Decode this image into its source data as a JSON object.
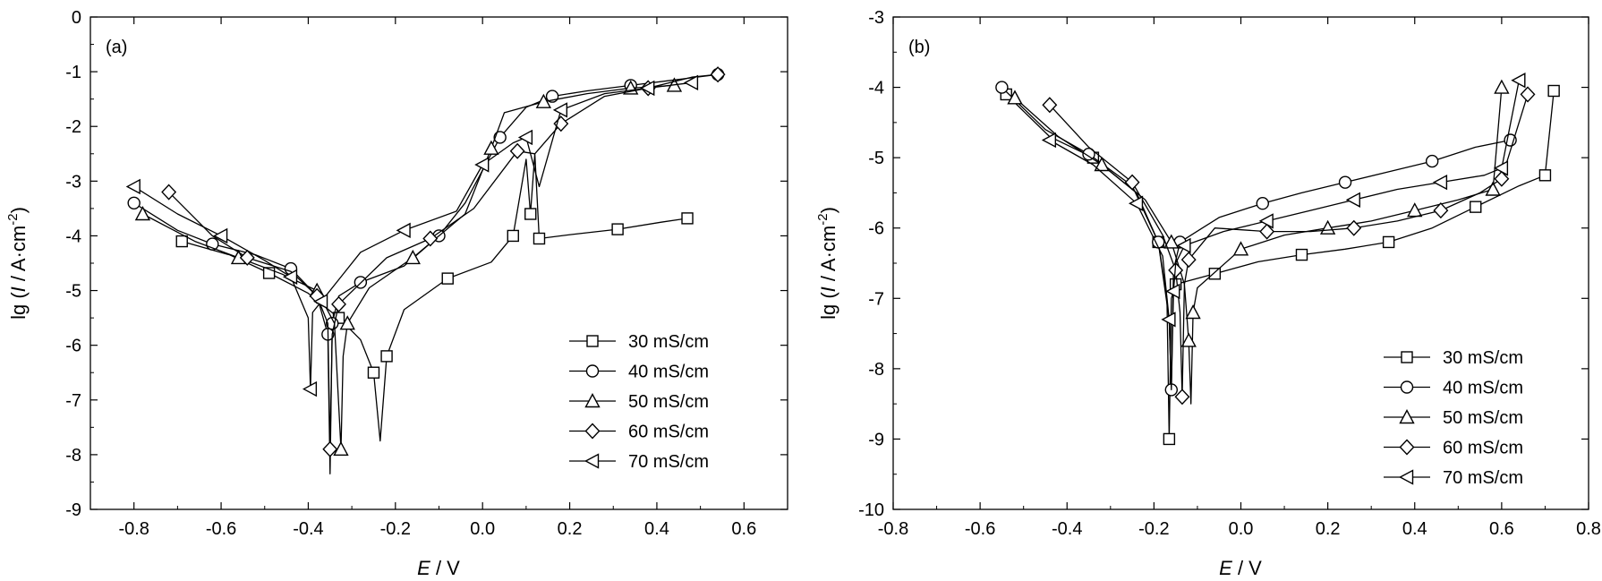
{
  "chart_data": [
    {
      "type": "line",
      "panel_label": "(a)",
      "xlabel_symbol": "E",
      "xlabel_unit": " / V",
      "ylabel_prefix": "lg (",
      "ylabel_symbol": "I",
      "ylabel_unit": " / A·cm",
      "ylabel_sup": "-2",
      "ylabel_suffix": ")",
      "xlim": [
        -0.9,
        0.7
      ],
      "ylim": [
        -9,
        0
      ],
      "xticks": [
        -0.8,
        -0.6,
        -0.4,
        -0.2,
        0.0,
        0.2,
        0.4,
        0.6
      ],
      "xtick_labels": [
        "-0.8",
        "-0.6",
        "-0.4",
        "-0.2",
        "0.0",
        "0.2",
        "0.4",
        "0.6"
      ],
      "yticks": [
        0,
        -1,
        -2,
        -3,
        -4,
        -5,
        -6,
        -7,
        -8,
        -9
      ],
      "ytick_labels": [
        "0",
        "-1",
        "-2",
        "-3",
        "-4",
        "-5",
        "-6",
        "-7",
        "-8",
        "-9"
      ],
      "legend_position": "bottom-right",
      "series": [
        {
          "name": "30 mS/cm",
          "marker": "square",
          "x": [
            -0.69,
            -0.58,
            -0.49,
            -0.4,
            -0.33,
            -0.28,
            -0.25,
            -0.235,
            -0.22,
            -0.18,
            -0.08,
            0.02,
            0.07,
            0.1,
            0.11,
            0.12,
            0.13,
            0.21,
            0.31,
            0.41,
            0.47
          ],
          "y": [
            -4.1,
            -4.35,
            -4.68,
            -5.05,
            -5.5,
            -5.9,
            -6.5,
            -7.75,
            -6.2,
            -5.35,
            -4.78,
            -4.48,
            -4.0,
            -2.6,
            -3.6,
            -2.5,
            -4.05,
            -3.97,
            -3.88,
            -3.75,
            -3.68
          ]
        },
        {
          "name": "40 mS/cm",
          "marker": "circle",
          "x": [
            -0.8,
            -0.7,
            -0.62,
            -0.52,
            -0.44,
            -0.38,
            -0.355,
            -0.35,
            -0.345,
            -0.33,
            -0.28,
            -0.18,
            -0.1,
            -0.04,
            0.04,
            0.1,
            0.16,
            0.24,
            0.34,
            0.44,
            0.54
          ],
          "y": [
            -3.4,
            -3.9,
            -4.15,
            -4.35,
            -4.6,
            -5.1,
            -5.8,
            -8.35,
            -5.6,
            -5.1,
            -4.85,
            -4.55,
            -4.0,
            -3.4,
            -2.2,
            -1.65,
            -1.45,
            -1.35,
            -1.25,
            -1.15,
            -1.05
          ]
        },
        {
          "name": "50 mS/cm",
          "marker": "triangle-up",
          "x": [
            -0.78,
            -0.66,
            -0.56,
            -0.46,
            -0.38,
            -0.34,
            -0.325,
            -0.32,
            -0.31,
            -0.26,
            -0.16,
            -0.04,
            0.02,
            0.05,
            0.14,
            0.24,
            0.34,
            0.44
          ],
          "y": [
            -3.6,
            -4.1,
            -4.4,
            -4.7,
            -5.0,
            -5.6,
            -7.9,
            -6.2,
            -5.6,
            -4.95,
            -4.4,
            -3.6,
            -2.4,
            -1.75,
            -1.55,
            -1.4,
            -1.3,
            -1.25
          ]
        },
        {
          "name": "60 mS/cm",
          "marker": "diamond",
          "x": [
            -0.72,
            -0.62,
            -0.54,
            -0.44,
            -0.38,
            -0.355,
            -0.35,
            -0.345,
            -0.33,
            -0.22,
            -0.12,
            -0.02,
            0.08,
            0.12,
            0.18,
            0.28,
            0.38,
            0.48,
            0.54
          ],
          "y": [
            -3.2,
            -4.0,
            -4.4,
            -4.65,
            -5.1,
            -5.6,
            -7.9,
            -5.8,
            -5.25,
            -4.4,
            -4.05,
            -3.5,
            -2.45,
            -2.5,
            -1.95,
            -1.45,
            -1.3,
            -1.1,
            -1.05
          ]
        },
        {
          "name": "70 mS/cm",
          "marker": "triangle-left",
          "x": [
            -0.8,
            -0.7,
            -0.6,
            -0.5,
            -0.44,
            -0.4,
            -0.395,
            -0.39,
            -0.37,
            -0.28,
            -0.18,
            -0.06,
            0.0,
            0.07,
            0.1,
            0.13,
            0.18,
            0.28,
            0.38,
            0.48
          ],
          "y": [
            -3.1,
            -3.6,
            -4.0,
            -4.45,
            -4.75,
            -5.5,
            -6.8,
            -5.4,
            -5.2,
            -4.3,
            -3.9,
            -3.55,
            -2.7,
            -2.3,
            -2.2,
            -3.1,
            -1.7,
            -1.4,
            -1.3,
            -1.2
          ]
        }
      ]
    },
    {
      "type": "line",
      "panel_label": "(b)",
      "xlabel_symbol": "E",
      "xlabel_unit": " / V",
      "ylabel_prefix": "lg (",
      "ylabel_symbol": "I",
      "ylabel_unit": " / A·cm",
      "ylabel_sup": "-2",
      "ylabel_suffix": ")",
      "xlim": [
        -0.8,
        0.8
      ],
      "ylim": [
        -10,
        -3
      ],
      "xticks": [
        -0.8,
        -0.6,
        -0.4,
        -0.2,
        0.0,
        0.2,
        0.4,
        0.6,
        0.8
      ],
      "xtick_labels": [
        "-0.8",
        "-0.6",
        "-0.4",
        "-0.2",
        "0.0",
        "0.2",
        "0.4",
        "0.6",
        "0.8"
      ],
      "yticks": [
        -3,
        -4,
        -5,
        -6,
        -7,
        -8,
        -9,
        -10
      ],
      "ytick_labels": [
        "-3",
        "-4",
        "-5",
        "-6",
        "-7",
        "-8",
        "-9",
        "-10"
      ],
      "legend_position": "bottom-right",
      "series": [
        {
          "name": "30 mS/cm",
          "marker": "square",
          "x": [
            -0.54,
            -0.44,
            -0.34,
            -0.24,
            -0.19,
            -0.17,
            -0.165,
            -0.16,
            -0.15,
            -0.12,
            -0.06,
            0.04,
            0.14,
            0.24,
            0.34,
            0.44,
            0.54,
            0.64,
            0.7,
            0.72
          ],
          "y": [
            -4.1,
            -4.7,
            -5.0,
            -5.5,
            -6.2,
            -7.0,
            -9.0,
            -7.0,
            -6.8,
            -6.75,
            -6.65,
            -6.48,
            -6.38,
            -6.3,
            -6.2,
            -6.0,
            -5.7,
            -5.4,
            -5.25,
            -4.05
          ]
        },
        {
          "name": "40 mS/cm",
          "marker": "circle",
          "x": [
            -0.55,
            -0.45,
            -0.35,
            -0.25,
            -0.19,
            -0.165,
            -0.16,
            -0.155,
            -0.14,
            -0.05,
            0.05,
            0.14,
            0.24,
            0.34,
            0.44,
            0.54,
            0.62
          ],
          "y": [
            -4.0,
            -4.6,
            -4.95,
            -5.4,
            -6.2,
            -7.3,
            -8.3,
            -6.6,
            -6.2,
            -5.85,
            -5.65,
            -5.5,
            -5.35,
            -5.2,
            -5.05,
            -4.85,
            -4.75
          ]
        },
        {
          "name": "50 mS/cm",
          "marker": "triangle-up",
          "x": [
            -0.52,
            -0.42,
            -0.32,
            -0.22,
            -0.16,
            -0.13,
            -0.12,
            -0.115,
            -0.11,
            -0.1,
            0.0,
            0.1,
            0.2,
            0.3,
            0.4,
            0.5,
            0.58,
            0.6
          ],
          "y": [
            -4.15,
            -4.7,
            -5.1,
            -5.6,
            -6.2,
            -6.8,
            -7.6,
            -8.5,
            -7.2,
            -6.85,
            -6.3,
            -6.1,
            -6.0,
            -5.9,
            -5.75,
            -5.6,
            -5.45,
            -4.0
          ]
        },
        {
          "name": "60 mS/cm",
          "marker": "diamond",
          "x": [
            -0.44,
            -0.35,
            -0.25,
            -0.18,
            -0.15,
            -0.14,
            -0.135,
            -0.13,
            -0.12,
            -0.06,
            0.06,
            0.16,
            0.26,
            0.36,
            0.46,
            0.55,
            0.6,
            0.66
          ],
          "y": [
            -4.25,
            -4.85,
            -5.35,
            -6.1,
            -6.6,
            -7.2,
            -8.4,
            -6.8,
            -6.45,
            -6.0,
            -6.05,
            -6.05,
            -6.0,
            -5.9,
            -5.75,
            -5.5,
            -5.3,
            -4.1
          ]
        },
        {
          "name": "70 mS/cm",
          "marker": "triangle-left",
          "x": [
            -0.44,
            -0.34,
            -0.24,
            -0.18,
            -0.165,
            -0.16,
            -0.155,
            -0.15,
            -0.13,
            -0.04,
            0.06,
            0.16,
            0.26,
            0.36,
            0.46,
            0.56,
            0.6,
            0.64
          ],
          "y": [
            -4.75,
            -5.1,
            -5.65,
            -6.4,
            -7.3,
            -8.3,
            -6.9,
            -6.5,
            -6.25,
            -6.05,
            -5.9,
            -5.75,
            -5.6,
            -5.45,
            -5.35,
            -5.25,
            -5.15,
            -3.9
          ]
        }
      ]
    }
  ]
}
